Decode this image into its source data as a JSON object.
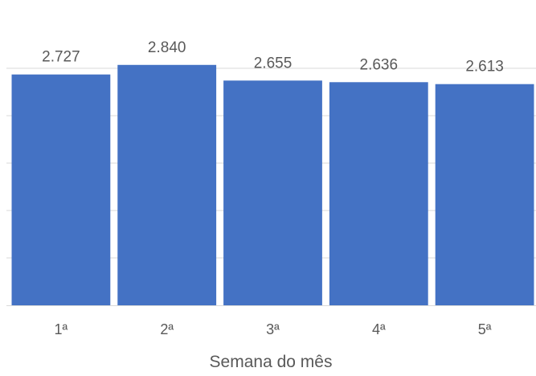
{
  "chart_data": {
    "type": "bar",
    "title": "",
    "xlabel": "Semana do mês",
    "ylabel": "",
    "categories": [
      "1ª",
      "2ª",
      "3ª",
      "4ª",
      "5ª"
    ],
    "values": [
      2727,
      2840,
      2655,
      2636,
      2613
    ],
    "value_labels": [
      "2.727",
      "2.840",
      "2.655",
      "2.636",
      "2.613"
    ],
    "ylim": [
      0,
      2800
    ],
    "gridlines": true,
    "legend": "none",
    "bar_color": "#4472C4",
    "gridline_color": "#D9D9D9"
  }
}
